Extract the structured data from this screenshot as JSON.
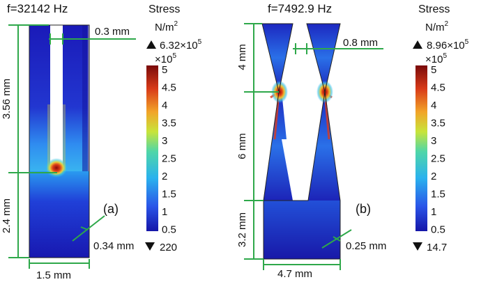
{
  "panel_a": {
    "label": "(a)",
    "frequency": "f=32142 Hz",
    "dims": {
      "top_gap": "0.3 mm",
      "upper_height": "3.56 mm",
      "lower_height": "2.4 mm",
      "thickness": "0.34 mm",
      "width": "1.5 mm"
    },
    "legend": {
      "title": "Stress",
      "unit_base": "N/m",
      "unit_exp": "2",
      "max_mant": "6.32×10",
      "max_exp": "5",
      "scale_mant": "×10",
      "scale_exp": "5",
      "min": "220",
      "ticks": [
        "5",
        "4.5",
        "4",
        "3.5",
        "3",
        "2.5",
        "2",
        "1.5",
        "1",
        "0.5"
      ]
    }
  },
  "panel_b": {
    "label": "(b)",
    "frequency": "f=7492.9 Hz",
    "dims": {
      "top_gap": "0.8 mm",
      "upper_height": "4 mm",
      "mid_height": "6 mm",
      "lower_height": "3.2 mm",
      "thickness": "0.25 mm",
      "width": "4.7 mm"
    },
    "legend": {
      "title": "Stress",
      "unit_base": "N/m",
      "unit_exp": "2",
      "max_mant": "8.96×10",
      "max_exp": "5",
      "scale_mant": "×10",
      "scale_exp": "5",
      "min": "14.7",
      "ticks": [
        "5",
        "4.5",
        "4",
        "3.5",
        "3",
        "2.5",
        "2",
        "1.5",
        "1",
        "0.5"
      ]
    }
  },
  "colors": {
    "dimension_line": "#2ea84a",
    "stress_low": "#1a1ab5",
    "stress_high": "#8b0000"
  }
}
